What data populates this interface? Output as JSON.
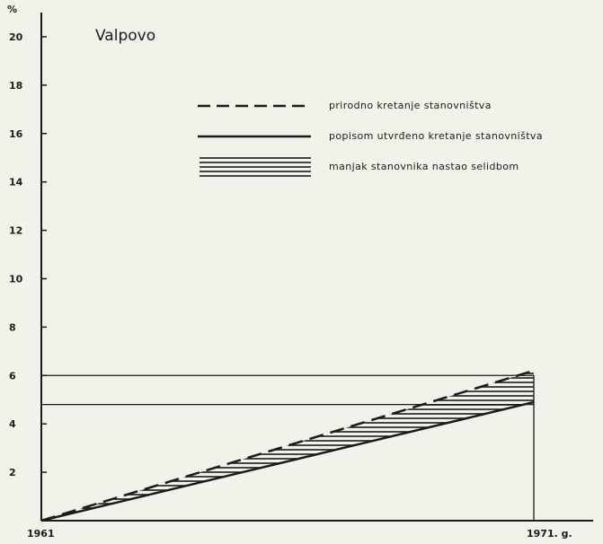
{
  "chart_data": {
    "type": "line",
    "title": "Valpovo",
    "ylabel": "%",
    "xlabel": "",
    "x": [
      1961,
      1971
    ],
    "x_tick_labels": [
      "1961",
      "1971. g."
    ],
    "ylim": [
      0,
      21
    ],
    "y_ticks": [
      2,
      4,
      6,
      8,
      10,
      12,
      14,
      16,
      18,
      20
    ],
    "grid": false,
    "legend_position": "top-right",
    "series": [
      {
        "name": "prirodno kretanje stanovništva",
        "style": "dashed",
        "values": [
          0,
          6.2
        ]
      },
      {
        "name": "popisom utvrđeno kretanje stanovništva",
        "style": "solid",
        "values": [
          0,
          4.9
        ]
      }
    ],
    "shaded_area": {
      "name": "manjak stanovnika nastao selidbom",
      "between": [
        "prirodno kretanje stanovništva",
        "popisom utvrđeno kretanje stanovništva"
      ],
      "style": "horizontal-hatch"
    },
    "reference_lines": [
      6.0,
      4.8
    ]
  },
  "colors": {
    "ink": "#1b1b1b",
    "paper": "#f2f1ea"
  }
}
